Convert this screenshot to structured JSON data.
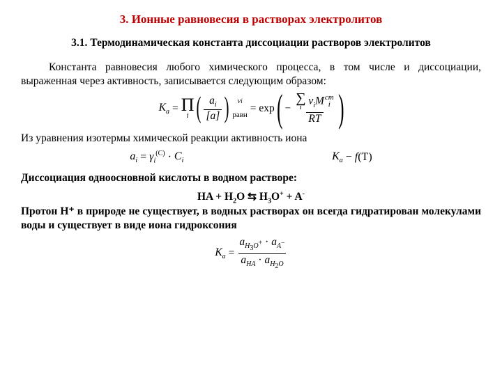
{
  "colors": {
    "title": "#c00000",
    "body": "#000000",
    "background": "#ffffff"
  },
  "fonts": {
    "family": "Times New Roman",
    "title_size": 17,
    "sub_size": 15.5,
    "body_size": 15.5
  },
  "section": {
    "title": "3. Ионные равновесия в растворах электролитов",
    "subtitle": "3.1. Термодинамическая константа диссоциации растворов электролитов"
  },
  "para1": "Константа равновесия любого химического процесса, в том числе и диссоциации, выраженная через активность, записывается следующим образом:",
  "eq1": {
    "lhs_K": "K",
    "lhs_a": "a",
    "eq": " = ",
    "prod_sym": "П",
    "prod_idx": "i",
    "frac_num_a": "a",
    "frac_num_i": "i",
    "frac_den_a": "a",
    "exp_top_v": "ν",
    "exp_top_i": "i",
    "sub_text": "равн",
    "exp_word": " = exp",
    "minus": "−",
    "sum_sym": "∑",
    "sum_idx": "i",
    "nu": "ν",
    "i": "i",
    "M": "M",
    "cm": "cm",
    "RT": "RT"
  },
  "para2": "Из уравнения изотермы химической реакции активность иона",
  "eq2a": {
    "a": "a",
    "i": "i",
    "eq": " = ",
    "gamma": "γ",
    "C_sup": "(C)",
    "dot": " · ",
    "C": "C"
  },
  "eq2b": {
    "K": "K",
    "a": "a",
    "dash": " − ",
    "f": "f",
    "T": "(T)"
  },
  "para3": "Диссоциация одноосновной кислоты в водном растворе:",
  "chem": {
    "HA": "HA",
    "plus": " + ",
    "H2O": "H",
    "H2O_2": "2",
    "H2O_O": "O",
    "rl": " ⇆ ",
    "H3O": "H",
    "H3O_3": "3",
    "H3O_O": "O",
    "H3O_plus": "+",
    "A": "A",
    "A_minus": "-"
  },
  "para4": "Протон H⁺ в природе не существует, в водных растворах он всегда гидратирован молекулами  воды и существует в виде иона гидроксония",
  "eq3": {
    "K": "K",
    "a": "a",
    "eq": " = ",
    "num_a1": "a",
    "num_s1": "H₃O⁺",
    "dot": " · ",
    "num_a2": "a",
    "num_s2": "A⁻",
    "den_a1": "a",
    "den_s1": "HA",
    "den_a2": "a",
    "den_s2": "H₂O"
  }
}
